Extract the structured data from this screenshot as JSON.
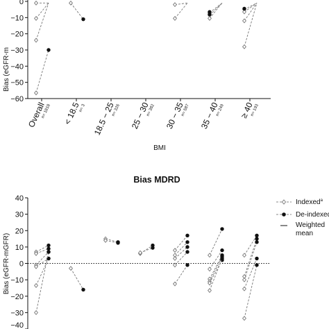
{
  "chart_data": [
    {
      "type": "scatter",
      "title": "",
      "xlabel": "BMI",
      "ylabel": "Bias (eGFR-m",
      "ylim": [
        -60,
        0
      ],
      "yticks": [
        "0",
        "−10",
        "−20",
        "−30",
        "−40",
        "−50",
        "−60"
      ],
      "grid": false,
      "categories": [
        {
          "label": "Overall",
          "n": "n= 1818"
        },
        {
          "label": "< 18.5",
          "n": "n= 3"
        },
        {
          "label": "18.5 − 25",
          "n": "n= 326"
        },
        {
          "label": "25 − 30",
          "n": "n= 382"
        },
        {
          "label": "30 − 35",
          "n": "n= 587"
        },
        {
          "label": "35 − 40",
          "n": "n= 249"
        },
        {
          "label": "≥ 40",
          "n": "n= 193"
        }
      ],
      "pairs": [
        {
          "category": 0,
          "indexed": -1,
          "deindexed": -1
        },
        {
          "category": 0,
          "indexed": -10.5,
          "deindexed": -1
        },
        {
          "category": 0,
          "indexed": -24,
          "deindexed": -1
        },
        {
          "category": 0,
          "indexed": -56.5,
          "deindexed": -30
        },
        {
          "category": 1,
          "indexed": -1,
          "deindexed": -11
        },
        {
          "category": 4,
          "indexed": -2,
          "deindexed": -1
        },
        {
          "category": 4,
          "indexed": -10.5,
          "deindexed": -1
        },
        {
          "category": 5,
          "indexed": -7,
          "deindexed": -1
        },
        {
          "category": 5,
          "indexed": -8.5,
          "deindexed": -1
        },
        {
          "category": 5,
          "indexed": -10.5,
          "deindexed": -1
        },
        {
          "category": 6,
          "indexed": -5,
          "deindexed": -1
        },
        {
          "category": 6,
          "indexed": -6.5,
          "deindexed": -1
        },
        {
          "category": 6,
          "indexed": -12,
          "deindexed": -1
        },
        {
          "category": 6,
          "indexed": -28,
          "deindexed": -1
        }
      ],
      "extra_points": [
        {
          "category": 5,
          "series": "deindexed",
          "value": -6.5
        },
        {
          "category": 5,
          "series": "deindexed",
          "value": -8
        },
        {
          "category": 6,
          "series": "deindexed",
          "value": -4.5
        }
      ]
    },
    {
      "type": "scatter",
      "title": "Bias MDRD",
      "xlabel": "",
      "ylabel": "Bias (eGFR-mGFR)",
      "ylim": [
        -40,
        40
      ],
      "yticks": [
        "40",
        "30",
        "20",
        "10",
        "0",
        "−10",
        "−20",
        "−30",
        "−40"
      ],
      "zero_line": true,
      "grid": false,
      "legend_position": "top-right",
      "legend": {
        "indexed": "Indexed",
        "indexed_sup": "a",
        "deindexed": "De-indexed",
        "deindexed_sup": "b",
        "weighted_line1": "Weighted",
        "weighted_line2": "mean"
      },
      "pairs": [
        {
          "category": 0,
          "indexed": 7,
          "deindexed": 11
        },
        {
          "category": 0,
          "indexed": 6,
          "deindexed": 9
        },
        {
          "category": 0,
          "indexed": -1,
          "deindexed": 7
        },
        {
          "category": 0,
          "indexed": -2,
          "deindexed": 3
        },
        {
          "category": 0,
          "indexed": -13.5,
          "deindexed": 3
        },
        {
          "category": 0,
          "indexed": -30,
          "deindexed": 7
        },
        {
          "category": 1,
          "indexed": -3,
          "deindexed": -16
        },
        {
          "category": 2,
          "indexed": 15,
          "deindexed": 13
        },
        {
          "category": 2,
          "indexed": 14,
          "deindexed": 12.5
        },
        {
          "category": 3,
          "indexed": 6,
          "deindexed": 11
        },
        {
          "category": 3,
          "indexed": 6.5,
          "deindexed": 9.5
        },
        {
          "category": 4,
          "indexed": 8,
          "deindexed": 17
        },
        {
          "category": 4,
          "indexed": 5,
          "deindexed": 13
        },
        {
          "category": 4,
          "indexed": 3,
          "deindexed": 10
        },
        {
          "category": 4,
          "indexed": -1,
          "deindexed": 7
        },
        {
          "category": 4,
          "indexed": -12.5,
          "deindexed": -1
        },
        {
          "category": 5,
          "indexed": 5,
          "deindexed": 21
        },
        {
          "category": 5,
          "indexed": -3.5,
          "deindexed": 8
        },
        {
          "category": 5,
          "indexed": -9.5,
          "deindexed": 5
        },
        {
          "category": 5,
          "indexed": -11,
          "deindexed": 4
        },
        {
          "category": 5,
          "indexed": -12,
          "deindexed": 2
        },
        {
          "category": 5,
          "indexed": -16.5,
          "deindexed": 3
        },
        {
          "category": 6,
          "indexed": 5,
          "deindexed": 17
        },
        {
          "category": 6,
          "indexed": -8,
          "deindexed": 15
        },
        {
          "category": 6,
          "indexed": -10,
          "deindexed": 13
        },
        {
          "category": 6,
          "indexed": -15.5,
          "deindexed": 3
        },
        {
          "category": 6,
          "indexed": -33.5,
          "deindexed": -1
        }
      ]
    }
  ]
}
